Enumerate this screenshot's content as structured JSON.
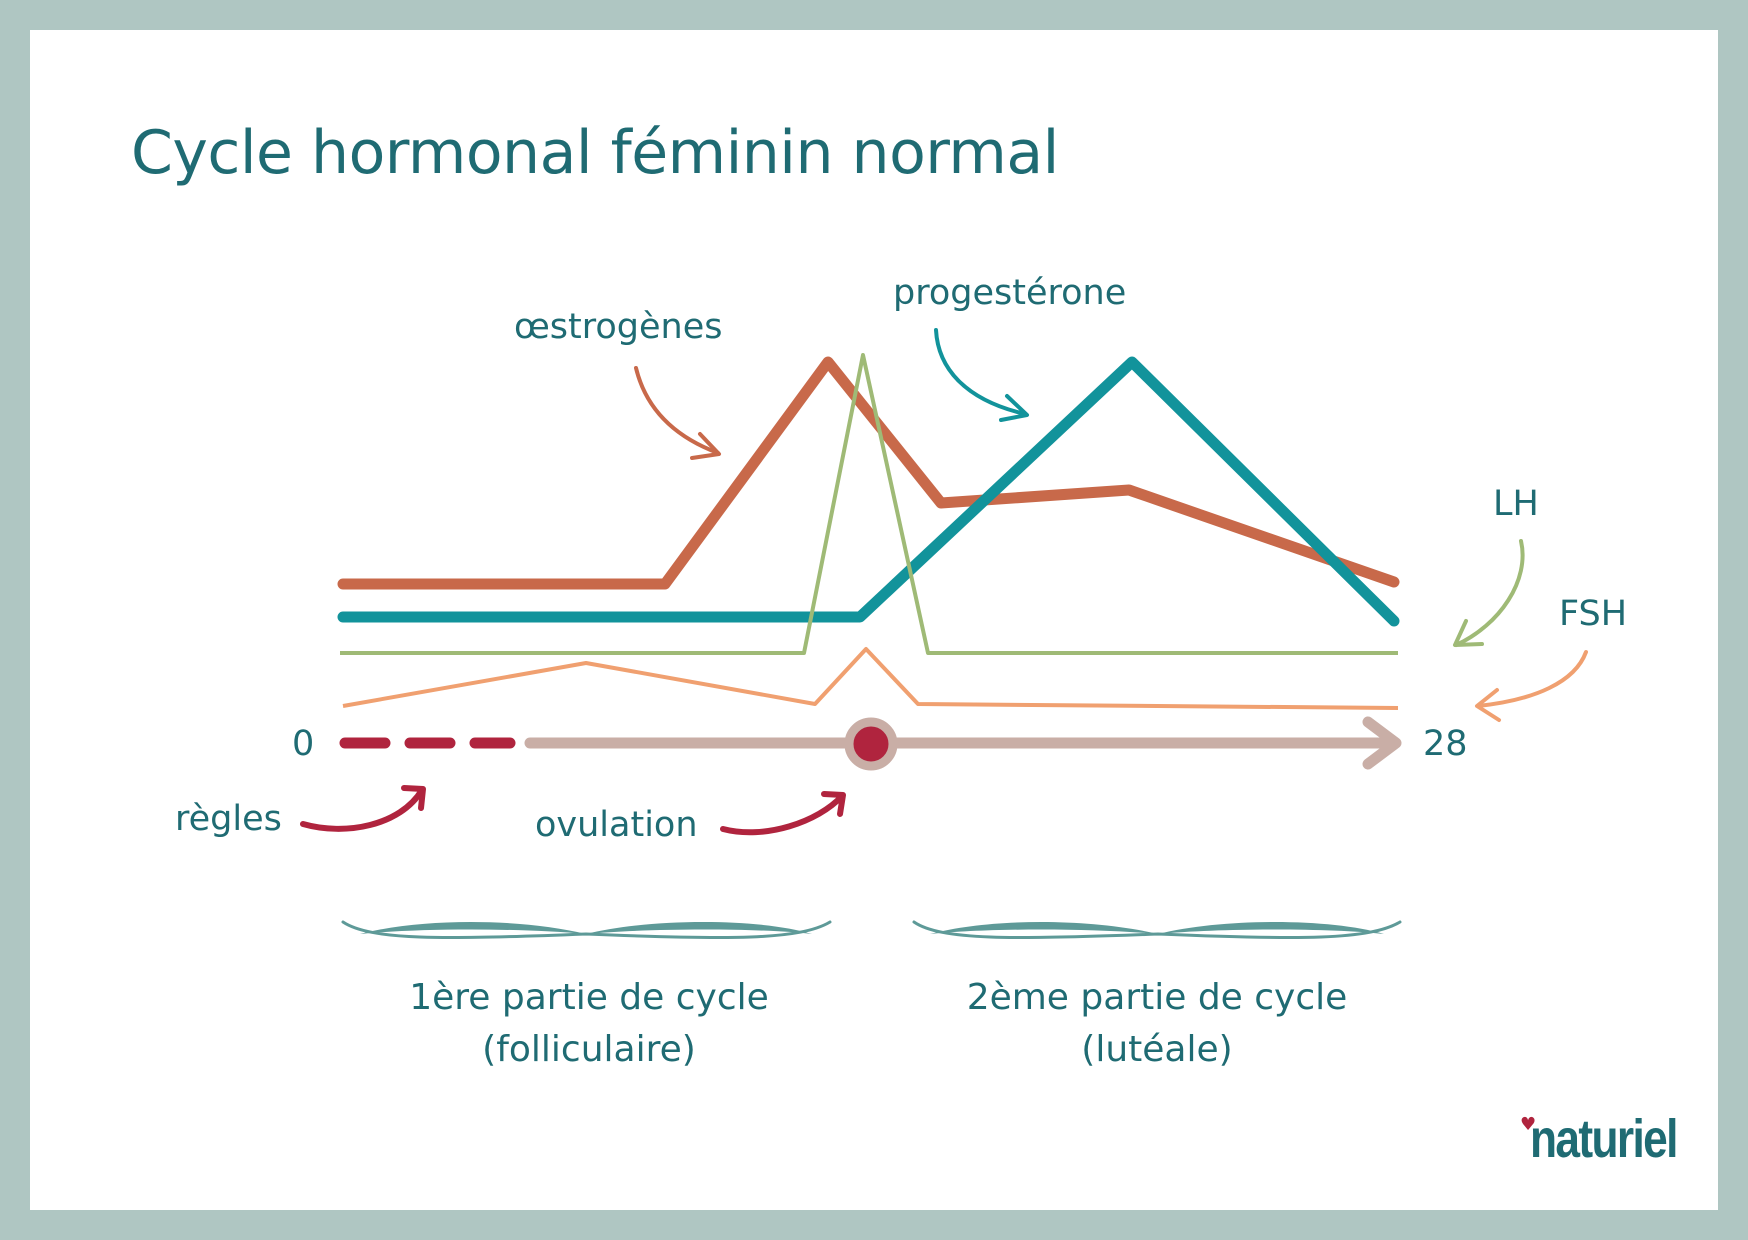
{
  "title": "Cycle hormonal féminin normal",
  "labels": {
    "oestrogenes": "œstrogènes",
    "progesterone": "progestérone",
    "lh": "LH",
    "fsh": "FSH",
    "regles": "règles",
    "ovulation": "ovulation",
    "day_start": "0",
    "day_end": "28"
  },
  "phases": {
    "first_line1": "1ère partie de cycle",
    "first_line2": "(folliculaire)",
    "second_line1": "2ème partie de cycle",
    "second_line2": "(lutéale)"
  },
  "brand": "naturiel",
  "colors": {
    "oestrogenes": "#c8694a",
    "progesterone": "#12939b",
    "lh": "#9fba76",
    "fsh": "#f0a070",
    "timeline": "#c9aea6",
    "regles": "#b0243e",
    "text": "#1f6b73",
    "frame": "#afc6c2"
  }
}
